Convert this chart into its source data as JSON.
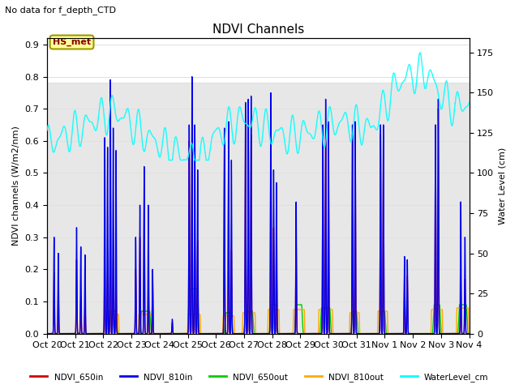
{
  "title": "NDVI Channels",
  "subtitle": "No data for f_depth_CTD",
  "ylabel_left": "NDVI channels (W/m2/nm)",
  "ylabel_right": "Water Level (cm)",
  "xlim": [
    0,
    15
  ],
  "ylim_left": [
    0.0,
    0.92
  ],
  "ylim_right": [
    0,
    184
  ],
  "xtick_labels": [
    "Oct 20",
    "Oct 21",
    "Oct 22",
    "Oct 23",
    "Oct 24",
    "Oct 25",
    "Oct 26",
    "Oct 27",
    "Oct 28",
    "Oct 29",
    "Oct 30",
    "Oct 31",
    "Nov 1",
    "Nov 2",
    "Nov 3",
    "Nov 4"
  ],
  "xtick_pos": [
    0,
    1,
    2,
    3,
    4,
    5,
    6,
    7,
    8,
    9,
    10,
    11,
    12,
    13,
    14,
    15
  ],
  "legend_labels": [
    "NDVI_650in",
    "NDVI_810in",
    "NDVI_650out",
    "NDVI_810out",
    "WaterLevel_cm"
  ],
  "legend_colors": [
    "#cc0000",
    "#0000cc",
    "#00cc00",
    "#ffaa00",
    "#00cccc"
  ],
  "bg_band_y1": 0.0,
  "bg_band_y2": 0.78,
  "station_label": "HS_met",
  "station_box_facecolor": "#ffff99",
  "station_box_edgecolor": "#999900",
  "grid_color": "#e0e0e0",
  "figsize": [
    6.4,
    4.8
  ],
  "dpi": 100
}
